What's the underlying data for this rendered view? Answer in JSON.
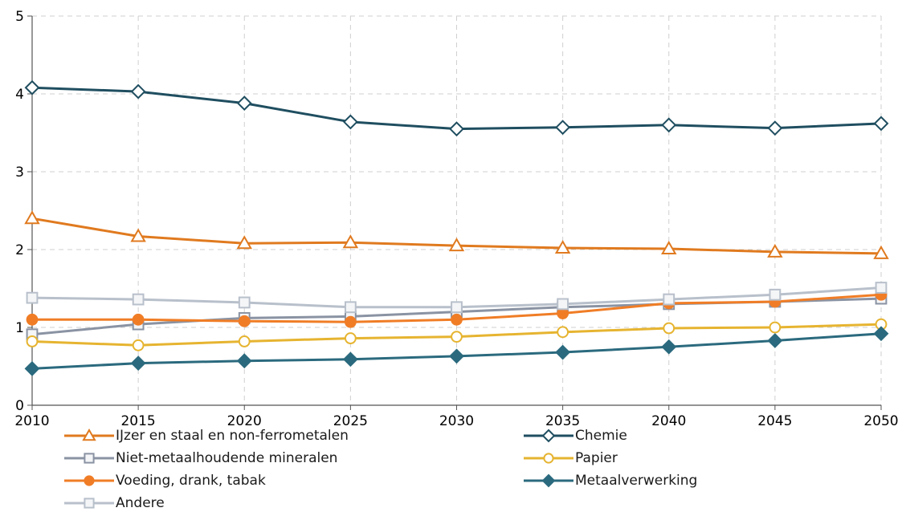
{
  "chart_data": {
    "type": "line",
    "x": [
      2010,
      2015,
      2020,
      2025,
      2030,
      2035,
      2040,
      2045,
      2050
    ],
    "xlim": [
      2010,
      2050
    ],
    "ylim": [
      0,
      5
    ],
    "yticks": [
      "0",
      "1",
      "2",
      "3",
      "4",
      "5"
    ],
    "xticks": [
      "2010",
      "2015",
      "2020",
      "2025",
      "2030",
      "2035",
      "2040",
      "2045",
      "2050"
    ],
    "grid": true,
    "legend_position": "bottom",
    "series": [
      {
        "name": "IJzer en staal en non-ferrometalen",
        "color": "#e07a1f",
        "marker": "triangle-open",
        "values": [
          2.4,
          2.17,
          2.08,
          2.09,
          2.05,
          2.02,
          2.01,
          1.97,
          1.95
        ]
      },
      {
        "name": "Chemie",
        "color": "#1f4e60",
        "marker": "diamond-open",
        "values": [
          4.08,
          4.03,
          3.88,
          3.64,
          3.55,
          3.57,
          3.6,
          3.56,
          3.62
        ]
      },
      {
        "name": "Niet-metaalhoudende mineralen",
        "color": "#8a93a3",
        "marker": "square-open",
        "values": [
          0.91,
          1.04,
          1.12,
          1.14,
          1.2,
          1.26,
          1.3,
          1.33,
          1.37
        ]
      },
      {
        "name": "Papier",
        "color": "#e6b430",
        "marker": "circle-open",
        "values": [
          0.82,
          0.77,
          0.82,
          0.86,
          0.88,
          0.94,
          0.99,
          1.0,
          1.04
        ]
      },
      {
        "name": "Voeding, drank, tabak",
        "color": "#f07d26",
        "marker": "circle-filled",
        "values": [
          1.1,
          1.1,
          1.08,
          1.07,
          1.1,
          1.18,
          1.31,
          1.33,
          1.42
        ]
      },
      {
        "name": "Metaalverwerking",
        "color": "#2b6a7e",
        "marker": "diamond-filled",
        "values": [
          0.47,
          0.54,
          0.57,
          0.59,
          0.63,
          0.68,
          0.75,
          0.83,
          0.92
        ]
      },
      {
        "name": "Andere",
        "color": "#b8c0cb",
        "marker": "square-open",
        "values": [
          1.38,
          1.36,
          1.32,
          1.26,
          1.26,
          1.3,
          1.36,
          1.42,
          1.51
        ]
      }
    ]
  }
}
